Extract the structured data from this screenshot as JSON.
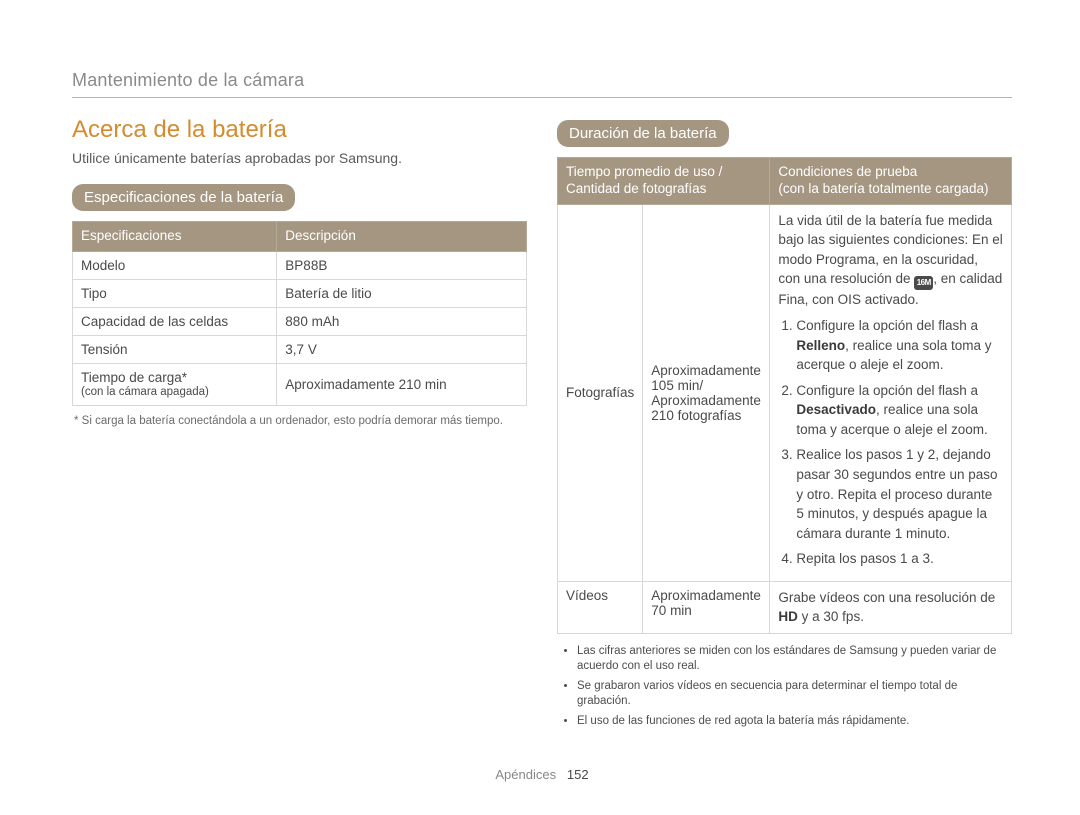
{
  "chapter_title": "Mantenimiento de la cámara",
  "section_title": "Acerca de la batería",
  "intro_text": "Utilice únicamente baterías aprobadas por Samsung.",
  "spec_badge": "Especificaciones de la batería",
  "spec_header": {
    "col1": "Especificaciones",
    "col2": "Descripción"
  },
  "spec_rows": {
    "r0": {
      "label": "Modelo",
      "value": "BP88B"
    },
    "r1": {
      "label": "Tipo",
      "value": "Batería de litio"
    },
    "r2": {
      "label": "Capacidad de las celdas",
      "value": "880 mAh"
    },
    "r3": {
      "label": "Tensión",
      "value": "3,7 V"
    },
    "r4": {
      "label": "Tiempo de carga*",
      "sub": "(con la cámara apagada)",
      "value": "Aproximadamente 210 min"
    }
  },
  "spec_footnote": "* Si carga la batería conectándola a un ordenador, esto podría demorar más tiempo.",
  "duration_badge": "Duración de la batería",
  "dur_header": {
    "col1a": "Tiempo promedio de uso /",
    "col1b": "Cantidad de fotografías",
    "col2a": "Condiciones de prueba",
    "col2b": "(con la batería totalmente cargada)"
  },
  "photos_row": {
    "label": "Fotografías",
    "time": "Aproximadamente 105 min/ Aproximadamente 210 fotografías",
    "cond_intro_pre": "La vida útil de la batería fue medida bajo las siguientes condiciones: En el modo Programa, en la oscuridad, con una resolución de ",
    "cond_intro_icon": "16M",
    "cond_intro_post": ", en calidad Fina, con OIS activado.",
    "step1_pre": "Configure la opción del flash a ",
    "step1_bold": "Relleno",
    "step1_post": ", realice una sola toma y acerque o aleje el zoom.",
    "step2_pre": "Configure la opción del flash a ",
    "step2_bold": "Desactivado",
    "step2_post": ", realice una sola toma y acerque o aleje el zoom.",
    "step3": "Realice los pasos 1 y 2, dejando pasar 30 segundos entre un paso y otro. Repita el proceso durante 5 minutos, y después apague la cámara durante 1 minuto.",
    "step4": "Repita los pasos 1 a 3."
  },
  "videos_row": {
    "label": "Vídeos",
    "time": "Aproximadamente 70 min",
    "cond_pre": "Grabe vídeos con una resolución de ",
    "cond_bold": "HD",
    "cond_post": " y a 30 fps."
  },
  "dur_bullets": {
    "b0": "Las cifras anteriores se miden con los estándares de Samsung y pueden variar de acuerdo con el uso real.",
    "b1": "Se grabaron varios vídeos en secuencia para determinar el tiempo total de grabación.",
    "b2": "El uso de las funciones de red agota la batería más rápidamente."
  },
  "footer": {
    "section": "Apéndices",
    "page": "152"
  },
  "colors": {
    "accent_orange": "#d58b2e",
    "badge_bg": "#a59682",
    "badge_fg": "#ffffff",
    "rule": "#b3b3b3",
    "cell_border": "#d8d8d8",
    "text": "#4a4a4a"
  }
}
